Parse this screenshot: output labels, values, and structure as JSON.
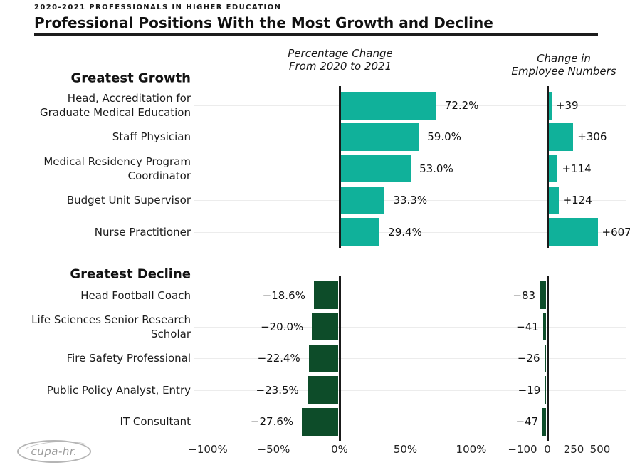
{
  "eyebrow": "2020-2021 PROFESSIONALS IN HIGHER EDUCATION",
  "title": "Professional Positions With the Most Growth and Decline",
  "columns": {
    "pct_header": "Percentage Change\nFrom 2020 to 2021",
    "num_header": "Change in\nEmployee Numbers"
  },
  "logo_text": "cupa-hr.",
  "colors": {
    "growth_bar": "#10B19A",
    "decline_bar": "#0D4C29",
    "axis": "#1A1A1A",
    "gridline": "#ECECEC"
  },
  "chart_data": {
    "type": "bar",
    "orientation": "horizontal",
    "panels": [
      {
        "name": "percentage_change",
        "axis_label": "Percentage Change From 2020 to 2021",
        "ticks": [
          "−100%",
          "−50%",
          "0%",
          "50%",
          "100%"
        ],
        "range": [
          -100,
          100
        ],
        "grid": true
      },
      {
        "name": "employee_numbers",
        "axis_label": "Change in Employee Numbers",
        "ticks": [
          "−100",
          "0",
          "250",
          "500"
        ],
        "range": [
          -100,
          500
        ],
        "grid": true
      }
    ],
    "sections": [
      {
        "name": "Greatest Growth",
        "rows": [
          {
            "label": "Head, Accreditation for\nGraduate Medical Education",
            "pct": 72.2,
            "pct_label": "72.2%",
            "num": 39,
            "num_label": "+39"
          },
          {
            "label": "Staff Physician",
            "pct": 59.0,
            "pct_label": "59.0%",
            "num": 306,
            "num_label": "+306"
          },
          {
            "label": "Medical Residency Program\nCoordinator",
            "pct": 53.0,
            "pct_label": "53.0%",
            "num": 114,
            "num_label": "+114"
          },
          {
            "label": "Budget Unit Supervisor",
            "pct": 33.3,
            "pct_label": "33.3%",
            "num": 124,
            "num_label": "+124"
          },
          {
            "label": "Nurse Practitioner",
            "pct": 29.4,
            "pct_label": "29.4%",
            "num": 607,
            "num_label": "+607"
          }
        ]
      },
      {
        "name": "Greatest Decline",
        "rows": [
          {
            "label": "Head Football Coach",
            "pct": -18.6,
            "pct_label": "−18.6%",
            "num": -83,
            "num_label": "−83"
          },
          {
            "label": "Life Sciences Senior Research\nScholar",
            "pct": -20.0,
            "pct_label": "−20.0%",
            "num": -41,
            "num_label": "−41"
          },
          {
            "label": "Fire Safety Professional",
            "pct": -22.4,
            "pct_label": "−22.4%",
            "num": -26,
            "num_label": "−26"
          },
          {
            "label": "Public Policy Analyst, Entry",
            "pct": -23.5,
            "pct_label": "−23.5%",
            "num": -19,
            "num_label": "−19"
          },
          {
            "label": "IT Consultant",
            "pct": -27.6,
            "pct_label": "−27.6%",
            "num": -47,
            "num_label": "−47"
          }
        ]
      }
    ]
  }
}
